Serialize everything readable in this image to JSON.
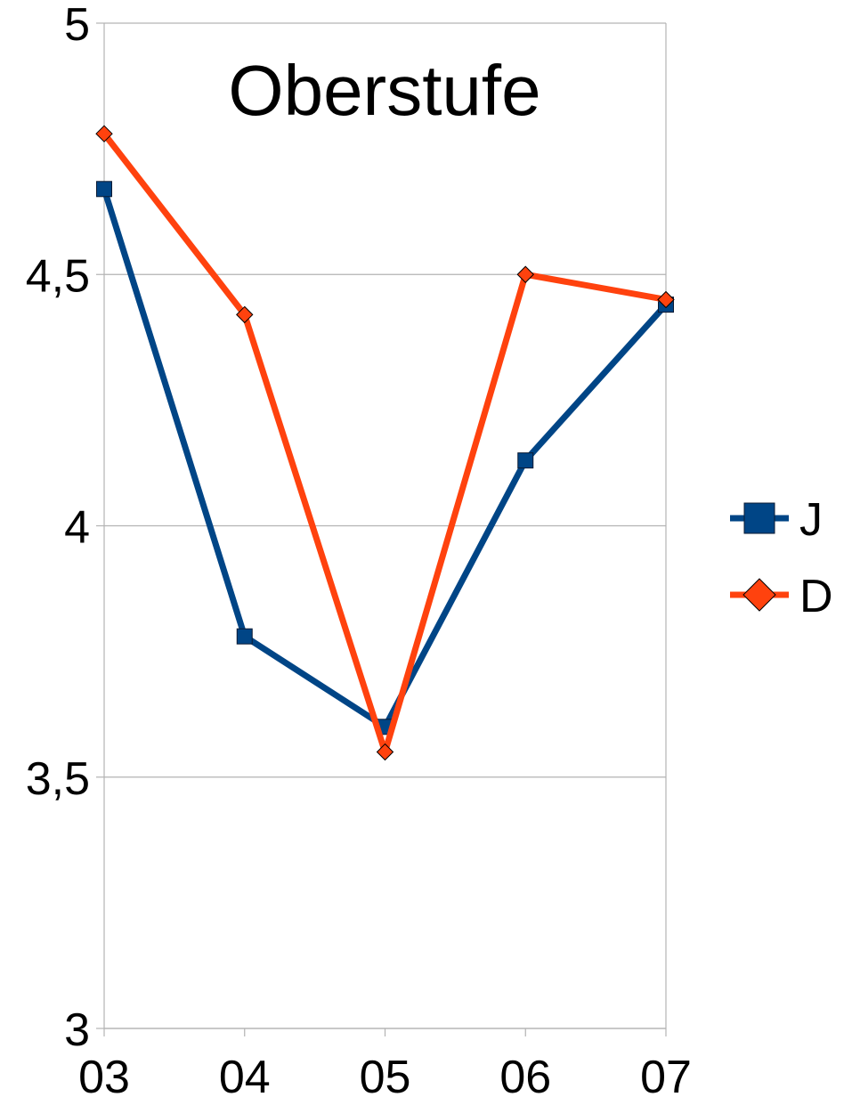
{
  "chart_data": {
    "type": "line",
    "title": "Oberstufe",
    "xlabel": "",
    "ylabel": "",
    "categories": [
      "03",
      "04",
      "05",
      "06",
      "07"
    ],
    "ylim": [
      3,
      5
    ],
    "y_ticks": [
      3,
      3.5,
      4,
      4.5,
      5
    ],
    "y_tick_labels": [
      "3",
      "3,5",
      "4",
      "4,5",
      "5"
    ],
    "grid": true,
    "legend_position": "right",
    "series": [
      {
        "name": "J",
        "values": [
          4.67,
          3.78,
          3.6,
          4.13,
          4.44
        ],
        "color": "#004586",
        "marker": "square"
      },
      {
        "name": "D",
        "values": [
          4.78,
          4.42,
          3.55,
          4.5,
          4.45
        ],
        "color": "#ff420e",
        "marker": "diamond"
      }
    ]
  }
}
